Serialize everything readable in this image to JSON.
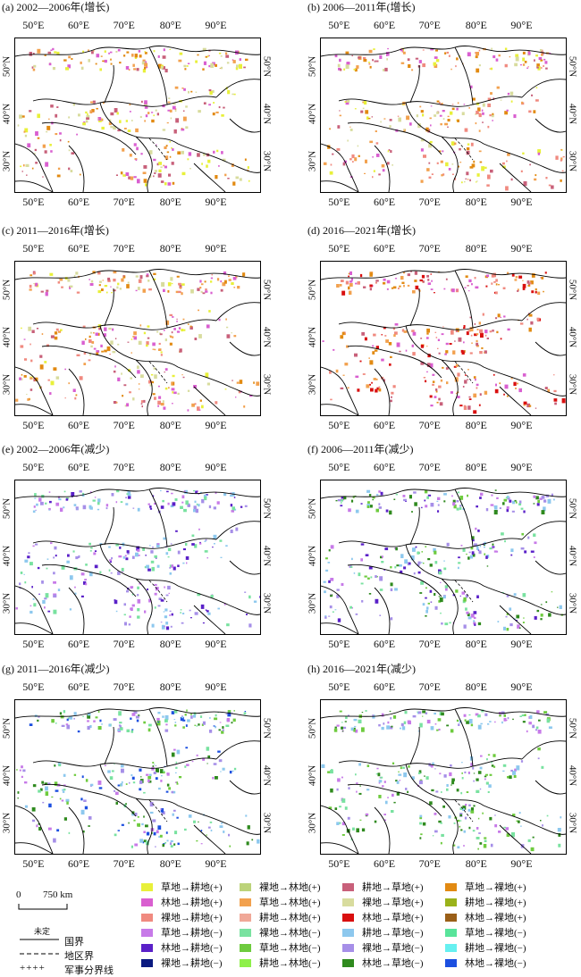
{
  "panels": [
    {
      "id": "a",
      "title": "(a) 2002—2006年(增长)"
    },
    {
      "id": "b",
      "title": "(b) 2006—2011年(增长)"
    },
    {
      "id": "c",
      "title": "(c) 2011—2016年(增长)"
    },
    {
      "id": "d",
      "title": "(d) 2016—2021年(增长)"
    },
    {
      "id": "e",
      "title": "(e) 2002—2006年(减少)"
    },
    {
      "id": "f",
      "title": "(f) 2006—2011年(减少)"
    },
    {
      "id": "g",
      "title": "(g) 2011—2016年(减少)"
    },
    {
      "id": "h",
      "title": "(h) 2016—2021年(减少)"
    }
  ],
  "lon_ticks": [
    "50°E",
    "60°E",
    "70°E",
    "80°E",
    "90°E"
  ],
  "lat_ticks": [
    "50°N",
    "40°N",
    "30°N"
  ],
  "scale_bar": {
    "zero": "0",
    "distance": "750 km"
  },
  "line_legend": {
    "undetermined": "未定",
    "national_border": "国界",
    "regional_border": "地区界",
    "military_line": "军事分界线"
  },
  "legend_items": [
    {
      "label": "草地→耕地(+)",
      "color": "#e8f03a"
    },
    {
      "label": "林地→耕地(+)",
      "color": "#d95fd0"
    },
    {
      "label": "裸地→耕地(+)",
      "color": "#f08a80"
    },
    {
      "label": "草地→耕地(−)",
      "color": "#c77ae8"
    },
    {
      "label": "林地→耕地(−)",
      "color": "#5a20c8"
    },
    {
      "label": "裸地→耕地(−)",
      "color": "#0b1a80"
    },
    {
      "label": "裸地→林地(+)",
      "color": "#bcd37a"
    },
    {
      "label": "草地→林地(+)",
      "color": "#f2a14e"
    },
    {
      "label": "耕地→林地(+)",
      "color": "#f0a898"
    },
    {
      "label": "裸地→林地(−)",
      "color": "#79e2a0"
    },
    {
      "label": "草地→林地(−)",
      "color": "#6ecb3e"
    },
    {
      "label": "耕地→林地(−)",
      "color": "#8ef04a"
    },
    {
      "label": "耕地→草地(+)",
      "color": "#c8607a"
    },
    {
      "label": "裸地→草地(+)",
      "color": "#d8dc9e"
    },
    {
      "label": "林地→草地(+)",
      "color": "#d90f0f"
    },
    {
      "label": "耕地→草地(−)",
      "color": "#8dc8ee"
    },
    {
      "label": "裸地→草地(−)",
      "color": "#a68fe8"
    },
    {
      "label": "林地→草地(−)",
      "color": "#2f8a1e"
    },
    {
      "label": "草地→裸地(+)",
      "color": "#e28a12"
    },
    {
      "label": "耕地→裸地(+)",
      "color": "#9ab21a"
    },
    {
      "label": "林地→裸地(+)",
      "color": "#9a5f18"
    },
    {
      "label": "草地→裸地(−)",
      "color": "#58e49a"
    },
    {
      "label": "耕地→裸地(−)",
      "color": "#66f0f0"
    },
    {
      "label": "林地→裸地(−)",
      "color": "#1c4fe0"
    }
  ]
}
